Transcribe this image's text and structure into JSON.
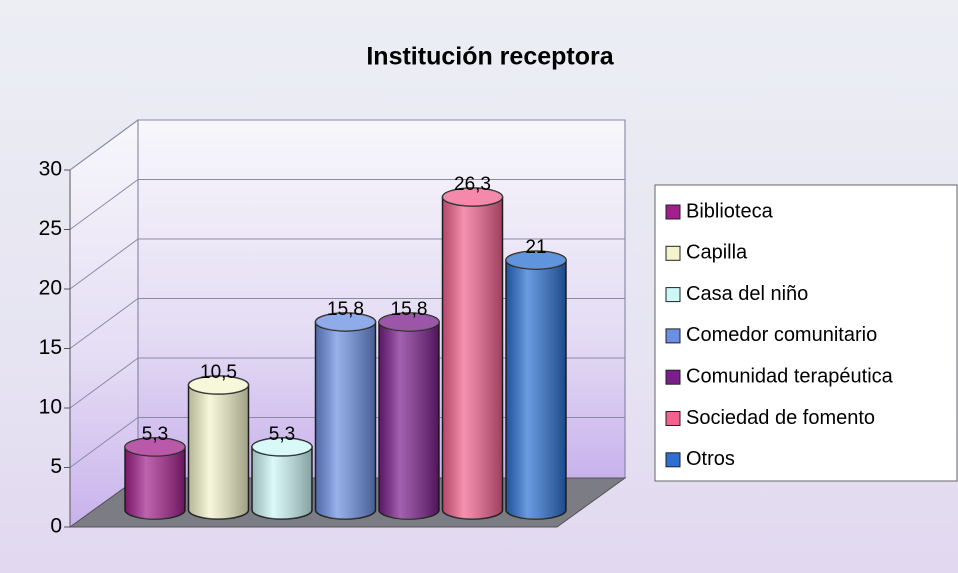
{
  "chart_data": {
    "type": "bar3d",
    "title": "Institución receptora",
    "categories": [
      "Biblioteca",
      "Capilla",
      "Casa del niño",
      "Comedor comunitario",
      "Comunidad terapéutica",
      "Sociedad de fomento",
      "Otros"
    ],
    "values": [
      5.3,
      10.5,
      5.3,
      15.8,
      15.8,
      26.3,
      21
    ],
    "value_labels": [
      "5,3",
      "10,5",
      "5,3",
      "15,8",
      "15,8",
      "26,3",
      "21"
    ],
    "colors": [
      "#a3208c",
      "#f4f4cc",
      "#cdf7f7",
      "#6b8fe2",
      "#7b1e8c",
      "#f2628f",
      "#2b70d2"
    ],
    "ylim": [
      0,
      30
    ],
    "yticks": [
      0,
      5,
      10,
      15,
      20,
      25,
      30
    ],
    "grid": true
  }
}
